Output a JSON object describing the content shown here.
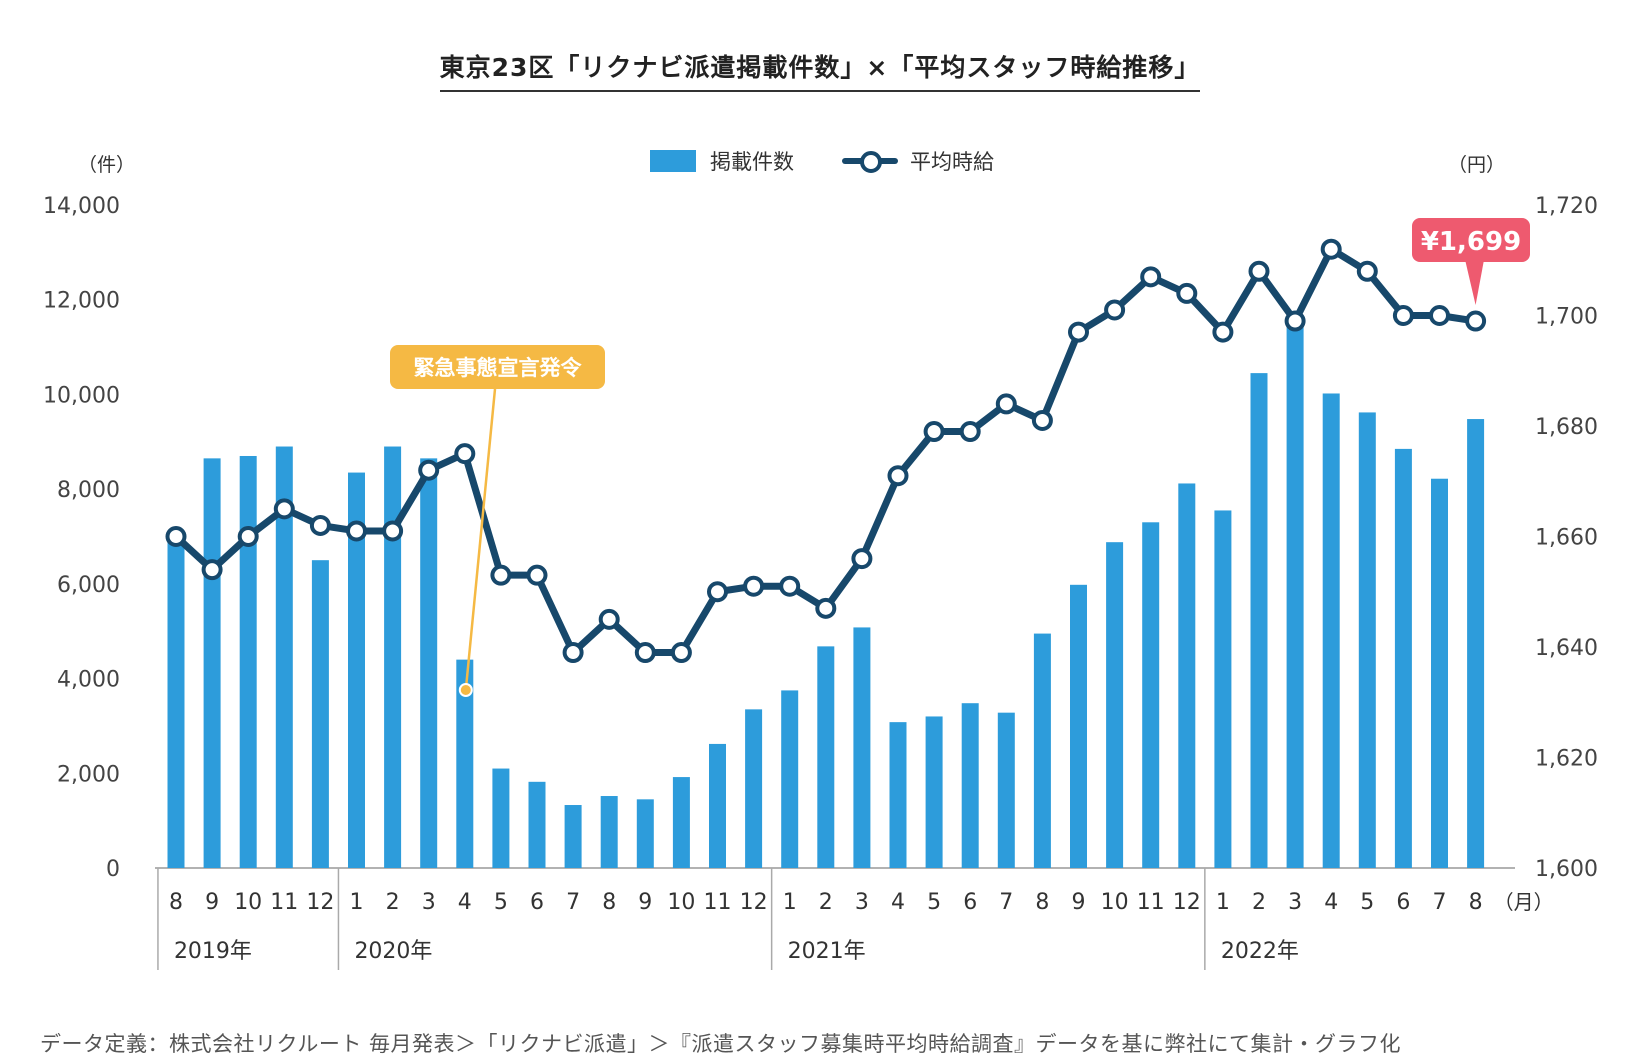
{
  "title": "東京23区「リクナビ派遣掲載件数」×「平均スタッフ時給推移」",
  "legend": {
    "bars": "掲載件数",
    "line": "平均時給"
  },
  "units": {
    "left": "（件）",
    "right": "（円）",
    "month": "（月）"
  },
  "source": "データ定義：株式会社リクルート 毎月発表＞「リクナビ派遣」＞『派遣スタッフ募集時平均時給調査』データを基に弊社にて集計・グラフ化",
  "colors": {
    "bar": "#2d9cdb",
    "line": "#17486b",
    "annotation": "#f5b944",
    "highlight": "#ee5a6f"
  },
  "chart_data": {
    "type": "bar+line",
    "categories": [
      "8",
      "9",
      "10",
      "11",
      "12",
      "1",
      "2",
      "3",
      "4",
      "5",
      "6",
      "7",
      "8",
      "9",
      "10",
      "11",
      "12",
      "1",
      "2",
      "3",
      "4",
      "5",
      "6",
      "7",
      "8",
      "9",
      "10",
      "11",
      "12",
      "1",
      "2",
      "3",
      "4",
      "5",
      "6",
      "7",
      "8"
    ],
    "year_groups": [
      {
        "label": "2019年",
        "start": 0,
        "count": 5
      },
      {
        "label": "2020年",
        "start": 5,
        "count": 12
      },
      {
        "label": "2021年",
        "start": 17,
        "count": 12
      },
      {
        "label": "2022年",
        "start": 29,
        "count": 8
      }
    ],
    "left_axis": {
      "ylim": [
        0,
        14000
      ],
      "ticks": [
        "0",
        "2,000",
        "4,000",
        "6,000",
        "8,000",
        "10,000",
        "12,000",
        "14,000"
      ]
    },
    "right_axis": {
      "ylim": [
        1600,
        1720
      ],
      "ticks": [
        "1,600",
        "1,620",
        "1,640",
        "1,660",
        "1,680",
        "1,700",
        "1,720"
      ]
    },
    "series": [
      {
        "name": "掲載件数",
        "type": "bar",
        "axis": "left",
        "values": [
          6950,
          8650,
          8700,
          8900,
          6500,
          8350,
          8900,
          8650,
          4400,
          2100,
          1820,
          1330,
          1520,
          1450,
          1920,
          2620,
          3350,
          3750,
          4680,
          5080,
          3080,
          3200,
          3480,
          3280,
          4950,
          5980,
          6880,
          7300,
          8120,
          7550,
          10450,
          11550,
          10020,
          9620,
          8850,
          8220,
          9480
        ]
      },
      {
        "name": "平均時給",
        "type": "line",
        "axis": "right",
        "values": [
          1660,
          1654,
          1660,
          1665,
          1662,
          1661,
          1661,
          1672,
          1675,
          1653,
          1653,
          1639,
          1645,
          1639,
          1639,
          1650,
          1651,
          1651,
          1647,
          1656,
          1671,
          1679,
          1679,
          1684,
          1681,
          1697,
          1701,
          1707,
          1704,
          1697,
          1708,
          1699,
          1712,
          1708,
          1700,
          1700,
          1699
        ]
      }
    ],
    "annotations": [
      {
        "text": "緊急事態宣言発令",
        "index": 8,
        "target": "bar"
      },
      {
        "text": "¥1,699",
        "index": 36,
        "target": "line"
      }
    ]
  }
}
